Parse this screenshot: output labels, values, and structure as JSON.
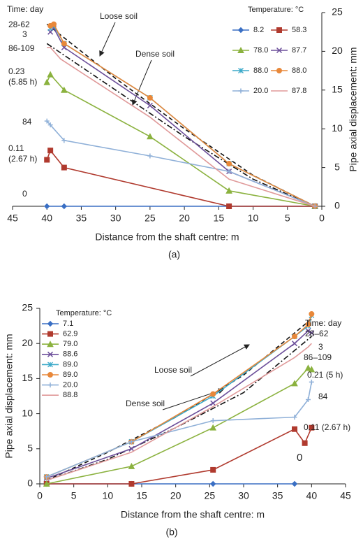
{
  "chart_data": [
    {
      "type": "line",
      "caption": "(a)",
      "xlabel": "Distance from the shaft centre: m",
      "ylabel": "Pipe axial displacement: mm",
      "xlim": [
        45,
        0
      ],
      "xticks": [
        45,
        40,
        35,
        30,
        25,
        20,
        15,
        10,
        5,
        0
      ],
      "ylim": [
        0,
        25
      ],
      "yticks": [
        0,
        5,
        10,
        15,
        20,
        25
      ],
      "y_axis_side": "right",
      "legend_title": "Temperature: °C",
      "legend": "upper right",
      "series": [
        {
          "name": "8.2",
          "color": "#3a6fc4",
          "marker": "diamond",
          "x": [
            40,
            37.5,
            13.5,
            1
          ],
          "values": [
            0,
            0,
            0,
            0
          ]
        },
        {
          "name": "58.3",
          "color": "#b03a2e",
          "marker": "square",
          "x": [
            40,
            39.5,
            37.5,
            13.5,
            1
          ],
          "values": [
            6,
            7.2,
            5,
            0,
            0
          ]
        },
        {
          "name": "78.0",
          "color": "#8bb23f",
          "marker": "triangle",
          "x": [
            40,
            39.5,
            37.5,
            25,
            13.5,
            1
          ],
          "values": [
            16,
            17,
            15,
            9,
            2,
            0
          ]
        },
        {
          "name": "87.7",
          "color": "#6c4f9a",
          "marker": "cross",
          "x": [
            39.5,
            39,
            37.5,
            25,
            13.5,
            1
          ],
          "values": [
            22.5,
            23,
            20.5,
            13,
            4.5,
            0
          ]
        },
        {
          "name": "88.0",
          "color": "#3aa9c9",
          "marker": "star",
          "x": [
            39.5,
            39,
            37.5,
            25,
            13.5,
            1
          ],
          "values": [
            23,
            23.3,
            21,
            14,
            5.5,
            0
          ]
        },
        {
          "name": "88.0",
          "color": "#e8883a",
          "marker": "circle",
          "x": [
            39.5,
            39,
            37.5,
            25,
            13.5,
            1
          ],
          "values": [
            23.3,
            23.5,
            21,
            14,
            5.5,
            0
          ]
        },
        {
          "name": "20.0",
          "color": "#8fb0d8",
          "marker": "plus",
          "x": [
            40,
            39.5,
            37.5,
            25,
            13.5,
            1
          ],
          "values": [
            11,
            10.5,
            8.5,
            6.5,
            4.5,
            0
          ]
        },
        {
          "name": "87.8",
          "color": "#e09a9a",
          "marker": "none",
          "x": [
            40,
            39.5,
            38,
            25,
            13.5,
            1
          ],
          "values": [
            20.5,
            20.5,
            19,
            11.5,
            3.5,
            0
          ]
        }
      ],
      "reference_lines": [
        {
          "label": "Loose soil",
          "style": "dashed",
          "x": [
            40,
            30,
            20,
            10,
            1
          ],
          "values": [
            23.5,
            16.5,
            10,
            4,
            0
          ]
        },
        {
          "label": "Dense soil",
          "style": "dashdot",
          "x": [
            40,
            30,
            20,
            10,
            1
          ],
          "values": [
            21,
            15,
            9,
            3.5,
            0
          ]
        }
      ],
      "annotations": [
        "Time: day",
        "28-62",
        "3",
        "86-109",
        "0.23",
        "(5.85 h)",
        "84",
        "0.11",
        "(2.67 h)",
        "0"
      ]
    },
    {
      "type": "line",
      "caption": "(b)",
      "xlabel": "Distance from the shaft centre: m",
      "ylabel": "Pipe axial displacement: mm",
      "xlim": [
        0,
        45
      ],
      "xticks": [
        0,
        5,
        10,
        15,
        20,
        25,
        30,
        35,
        40,
        45
      ],
      "ylim": [
        0,
        25
      ],
      "yticks": [
        0,
        5,
        10,
        15,
        20,
        25
      ],
      "y_axis_side": "left",
      "legend_title": "Temperature: °C",
      "legend": "upper left",
      "series": [
        {
          "name": "7.1",
          "color": "#3a6fc4",
          "marker": "diamond",
          "x": [
            1,
            13.5,
            25.5,
            37.5
          ],
          "values": [
            0,
            0,
            0,
            0
          ]
        },
        {
          "name": "62.9",
          "color": "#b03a2e",
          "marker": "square",
          "x": [
            1,
            13.5,
            25.5,
            37.5,
            39,
            40
          ],
          "values": [
            0,
            0,
            2,
            7.8,
            5.8,
            8
          ]
        },
        {
          "name": "79.0",
          "color": "#8bb23f",
          "marker": "triangle",
          "x": [
            1,
            13.5,
            25.5,
            37.5,
            39.5,
            40
          ],
          "values": [
            0,
            2.5,
            8,
            14.3,
            16.5,
            16.3
          ]
        },
        {
          "name": "88.6",
          "color": "#6c4f9a",
          "marker": "cross",
          "x": [
            1,
            13.5,
            25.5,
            37.5,
            39.5,
            40
          ],
          "values": [
            0.8,
            5,
            11.5,
            20,
            21.8,
            21.5
          ]
        },
        {
          "name": "89.0",
          "color": "#3aa9c9",
          "marker": "star",
          "x": [
            1,
            13.5,
            25.5,
            37.5,
            39.5,
            40
          ],
          "values": [
            1,
            6,
            12.5,
            21,
            22.5,
            24
          ]
        },
        {
          "name": "89.0",
          "color": "#e8883a",
          "marker": "circle",
          "x": [
            1,
            13.5,
            25.5,
            37.5,
            39.5,
            40
          ],
          "values": [
            1,
            6,
            12.8,
            21,
            22.7,
            24.2
          ]
        },
        {
          "name": "20.0",
          "color": "#8fb0d8",
          "marker": "plus",
          "x": [
            1,
            13.5,
            25.5,
            37.5,
            39.5,
            40
          ],
          "values": [
            1,
            6,
            9,
            9.5,
            12,
            14.5
          ]
        },
        {
          "name": "88.8",
          "color": "#e09a9a",
          "marker": "none",
          "x": [
            1,
            13.5,
            25.5,
            37.5,
            39.5,
            40
          ],
          "values": [
            0.5,
            4.5,
            11,
            18,
            19.5,
            20
          ]
        }
      ],
      "reference_lines": [
        {
          "label": "Loose soil",
          "style": "dashed",
          "x": [
            1,
            10,
            20,
            30,
            40
          ],
          "values": [
            0.5,
            4.5,
            9.5,
            15.5,
            23.5
          ]
        },
        {
          "label": "Dense soil",
          "style": "dashdot",
          "x": [
            1,
            10,
            20,
            30,
            40
          ],
          "values": [
            0.5,
            3.5,
            8,
            13,
            21
          ]
        }
      ],
      "annotations": [
        "Time: day",
        "28–62",
        "3",
        "86–109",
        "0.21 (5 h)",
        "84",
        "0.11 (2.67 h)",
        "0"
      ]
    }
  ]
}
